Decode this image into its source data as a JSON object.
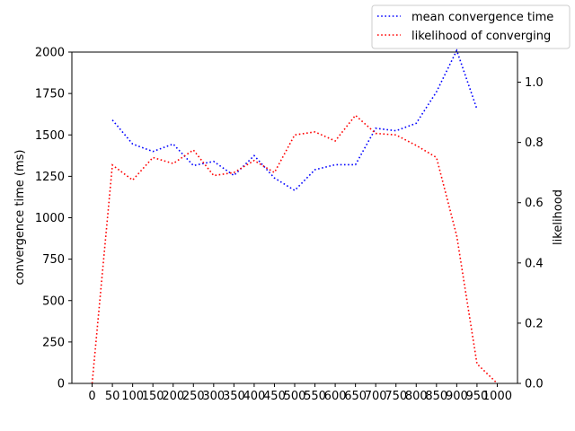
{
  "chart_data": {
    "type": "line",
    "title": "",
    "x_ticks": [
      0,
      50,
      100,
      150,
      200,
      250,
      300,
      350,
      400,
      450,
      500,
      550,
      600,
      650,
      700,
      750,
      800,
      850,
      900,
      950,
      1000
    ],
    "xlim": [
      -50,
      1050
    ],
    "left_axis": {
      "label": "convergence time (ms)",
      "ylim": [
        0,
        2000
      ],
      "ticks": [
        0,
        250,
        500,
        750,
        1000,
        1250,
        1500,
        1750,
        2000
      ]
    },
    "right_axis": {
      "label": "likelihood",
      "ylim": [
        0,
        1.1
      ],
      "ticks": [
        "0.0",
        "0.2",
        "0.4",
        "0.6",
        "0.8",
        "1.0"
      ]
    },
    "legend": {
      "placement": "top-right-outside"
    },
    "series": [
      {
        "name": "mean convergence time",
        "axis": "left",
        "color": "#0000ff",
        "style": "dotted",
        "x": [
          50,
          100,
          150,
          200,
          250,
          300,
          350,
          400,
          450,
          500,
          550,
          600,
          650,
          700,
          750,
          800,
          850,
          900,
          950
        ],
        "values": [
          1590,
          1445,
          1400,
          1445,
          1315,
          1340,
          1255,
          1375,
          1240,
          1165,
          1290,
          1320,
          1320,
          1540,
          1525,
          1570,
          1760,
          2010,
          1655
        ]
      },
      {
        "name": "likelihood of converging",
        "axis": "right",
        "color": "#ff0000",
        "style": "dotted",
        "x": [
          0,
          50,
          100,
          150,
          200,
          250,
          300,
          350,
          400,
          450,
          500,
          550,
          600,
          650,
          700,
          750,
          800,
          850,
          900,
          950,
          1000
        ],
        "values": [
          0.0,
          0.725,
          0.675,
          0.75,
          0.73,
          0.775,
          0.69,
          0.7,
          0.74,
          0.7,
          0.825,
          0.835,
          0.805,
          0.89,
          0.83,
          0.825,
          0.79,
          0.75,
          0.49,
          0.065,
          0.0
        ]
      }
    ]
  }
}
